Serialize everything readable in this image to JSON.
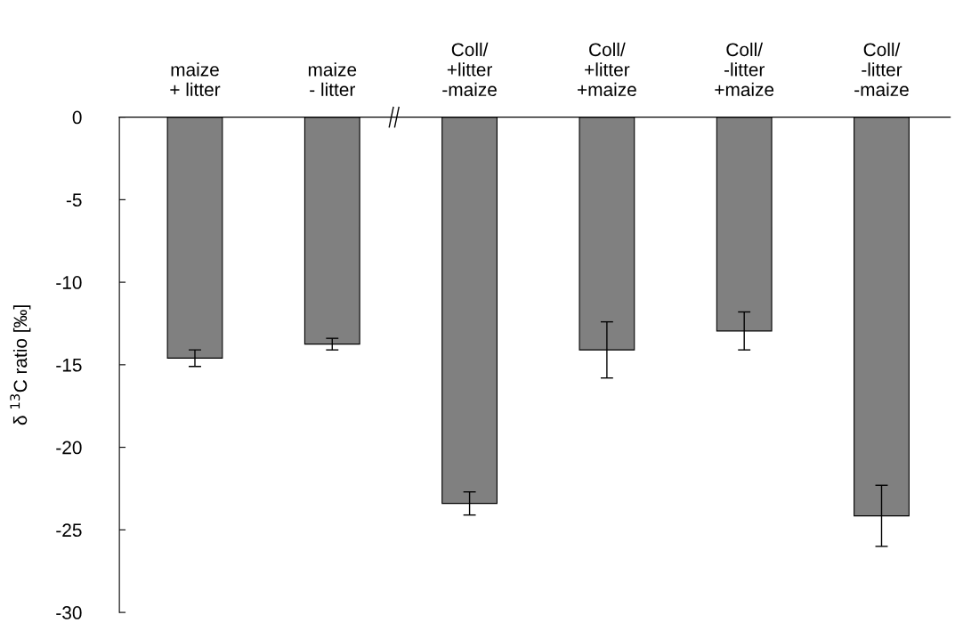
{
  "chart_data": {
    "type": "bar",
    "ylabel": "δ $^{13}$C ratio [‰]",
    "categories": [
      "maize\n+ litter",
      "maize\n- litter",
      "Coll/\n+litter\n-maize",
      "Coll/\n+litter\n+maize",
      "Coll/\n-litter\n+maize",
      "Coll/\n-litter\n-maize"
    ],
    "values": [
      -14.6,
      -13.75,
      -23.4,
      -14.1,
      -12.95,
      -24.15
    ],
    "errors": [
      0.5,
      0.35,
      0.7,
      1.7,
      1.15,
      1.85
    ],
    "color": "#808080",
    "ylim": [
      -30,
      0
    ],
    "yticks": [
      -30,
      -25,
      -20,
      -15,
      -10,
      -5,
      0
    ],
    "grid": false
  }
}
